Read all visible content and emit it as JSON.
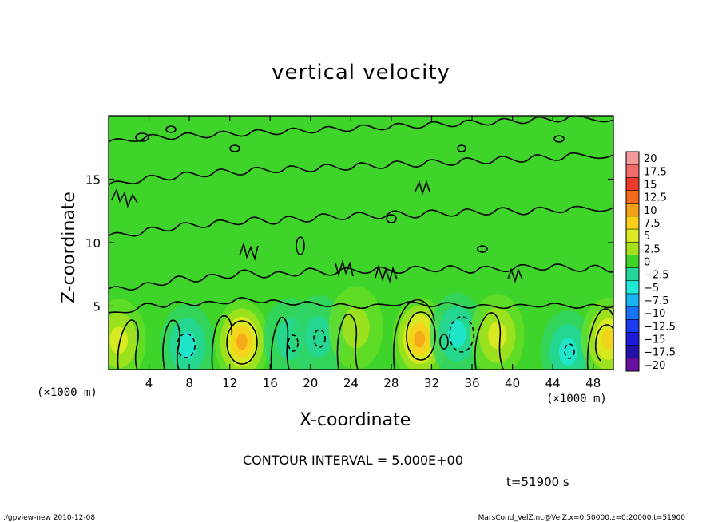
{
  "chart_data": {
    "type": "heatmap",
    "title": "vertical velocity",
    "xlabel": "X-coordinate",
    "ylabel": "Z-coordinate",
    "x_unit_label": "(×1000 m)",
    "xlim": [
      0,
      50
    ],
    "ylim": [
      0,
      20
    ],
    "x_ticks": [
      4,
      8,
      12,
      16,
      20,
      24,
      28,
      32,
      36,
      40,
      44,
      48
    ],
    "y_ticks": [
      5,
      10,
      15
    ],
    "colorbar": {
      "labels": [
        "20",
        "17.5",
        "15",
        "12.5",
        "10",
        "7.5",
        "5",
        "2.5",
        "0",
        "−2.5",
        "−5",
        "−7.5",
        "−10",
        "−12.5",
        "−15",
        "−17.5",
        "−20"
      ],
      "colors": [
        "#f49a9a",
        "#f26a6a",
        "#ee3a2a",
        "#f26a1a",
        "#f5a019",
        "#f8d019",
        "#e0ea22",
        "#a6e21c",
        "#3ed42a",
        "#23d699",
        "#1ee8d6",
        "#18b4f0",
        "#1873f4",
        "#1a3cf0",
        "#1a1ad8",
        "#2412a8",
        "#6a10a0"
      ]
    },
    "features": [
      {
        "x": 1.0,
        "z": 2.3,
        "w": 4
      },
      {
        "x": 7.8,
        "z": 1.9,
        "w": -6
      },
      {
        "x": 13.2,
        "z": 2.2,
        "w": 10
      },
      {
        "x": 18.0,
        "z": 2.4,
        "w": -3
      },
      {
        "x": 20.8,
        "z": 2.6,
        "w": -2
      },
      {
        "x": 24.5,
        "z": 3.3,
        "w": 3
      },
      {
        "x": 30.8,
        "z": 2.4,
        "w": 11
      },
      {
        "x": 34.5,
        "z": 2.8,
        "w": -6
      },
      {
        "x": 38.5,
        "z": 2.7,
        "w": 4
      },
      {
        "x": 45.5,
        "z": 1.4,
        "w": -4
      },
      {
        "x": 49.5,
        "z": 2.4,
        "w": 7
      }
    ]
  },
  "contour_interval_text": "CONTOUR INTERVAL = 5.000E+00",
  "time_text": "t=51900 s",
  "footer_left": "./gpview-new  2010-12-08",
  "footer_right": "MarsCond_VelZ.nc@VelZ,x=0:50000,z=0:20000,t=51900"
}
